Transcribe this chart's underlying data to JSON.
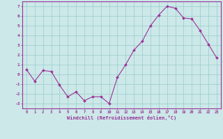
{
  "x": [
    0,
    1,
    2,
    3,
    4,
    5,
    6,
    7,
    8,
    9,
    10,
    11,
    12,
    13,
    14,
    15,
    16,
    17,
    18,
    19,
    20,
    21,
    22,
    23
  ],
  "y": [
    0.5,
    -0.7,
    0.4,
    0.3,
    -1.1,
    -2.3,
    -1.8,
    -2.7,
    -2.3,
    -2.3,
    -3.0,
    -0.3,
    1.0,
    2.5,
    3.4,
    5.0,
    6.1,
    7.0,
    6.8,
    5.8,
    5.7,
    4.5,
    3.1,
    1.7
  ],
  "xlabel": "Windchill (Refroidissement éolien,°C)",
  "ylim": [
    -3.5,
    7.5
  ],
  "xlim": [
    -0.5,
    23.5
  ],
  "yticks": [
    -3,
    -2,
    -1,
    0,
    1,
    2,
    3,
    4,
    5,
    6,
    7
  ],
  "line_color": "#993399",
  "marker_color": "#993399",
  "bg_color": "#cce8e8",
  "grid_color": "#99cccc",
  "spine_color": "#993399",
  "tick_color": "#993399",
  "label_color": "#993399"
}
